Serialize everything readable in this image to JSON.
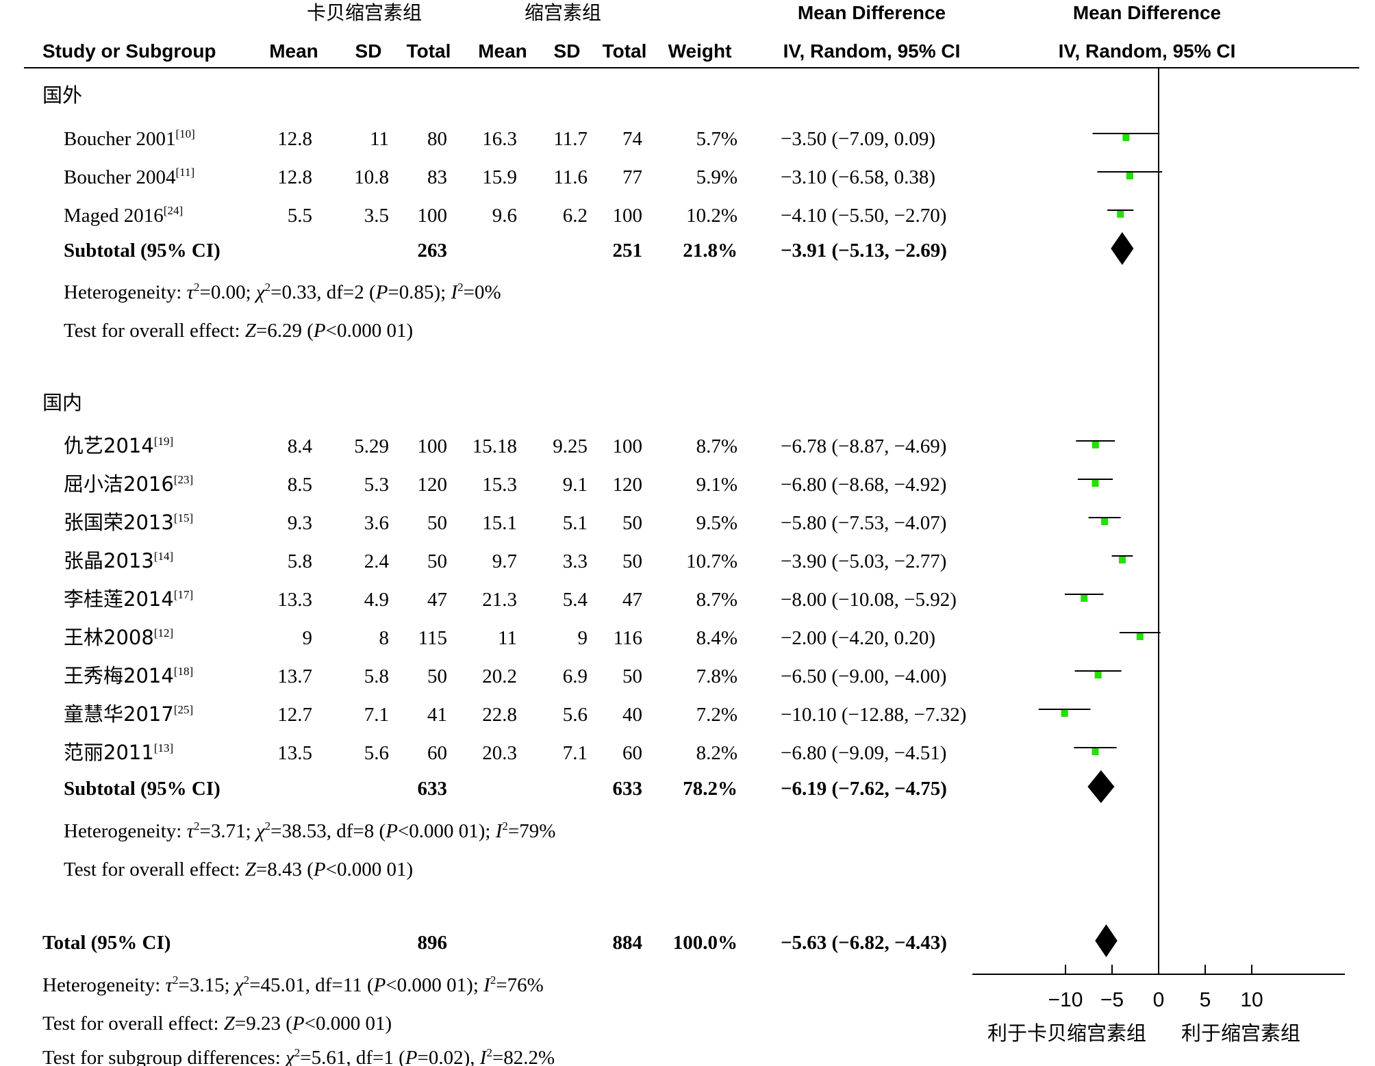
{
  "header": {
    "group1": "卡贝缩宫素组",
    "group2": "缩宫素组",
    "md_col": "Mean Difference",
    "md_col2": "Mean Difference",
    "study_col": "Study or Subgroup",
    "mean1": "Mean",
    "sd1": "SD",
    "total1": "Total",
    "mean2": "Mean",
    "sd2": "SD",
    "total2": "Total",
    "weight": "Weight",
    "ci_col": "IV, Random, 95% CI",
    "ci_col2": "IV, Random, 95% CI"
  },
  "chart_data": {
    "type": "forest",
    "x_axis": {
      "range": [
        -20,
        20
      ],
      "ticks": [
        -10,
        -5,
        0,
        5,
        10
      ],
      "tick_labels": [
        "−10",
        "−5",
        "0",
        "5",
        "10"
      ],
      "left_label": "利于卡贝缩宫素组",
      "right_label": "利于缩宫素组"
    },
    "colors": {
      "study_marker": "#22e000",
      "summary": "#000000"
    },
    "subgroups": [
      {
        "name": "国外",
        "studies": [
          {
            "name": "Boucher 2001",
            "ref": "[10]",
            "m1": "12.8",
            "sd1": "11",
            "n1": "80",
            "m2": "16.3",
            "sd2": "11.7",
            "n2": "74",
            "weight": "5.7%",
            "ci_text": "−3.50 (−7.09, 0.09)",
            "md": -3.5,
            "lo": -7.09,
            "hi": 0.09
          },
          {
            "name": "Boucher 2004",
            "ref": "[11]",
            "m1": "12.8",
            "sd1": "10.8",
            "n1": "83",
            "m2": "15.9",
            "sd2": "11.6",
            "n2": "77",
            "weight": "5.9%",
            "ci_text": "−3.10 (−6.58, 0.38)",
            "md": -3.1,
            "lo": -6.58,
            "hi": 0.38
          },
          {
            "name": "Maged 2016",
            "ref": "[24]",
            "m1": "5.5",
            "sd1": "3.5",
            "n1": "100",
            "m2": "9.6",
            "sd2": "6.2",
            "n2": "100",
            "weight": "10.2%",
            "ci_text": "−4.10 (−5.50, −2.70)",
            "md": -4.1,
            "lo": -5.5,
            "hi": -2.7
          }
        ],
        "subtotal": {
          "label": "Subtotal (95% CI)",
          "n1": "263",
          "n2": "251",
          "weight": "21.8%",
          "ci_text": "−3.91 (−5.13, −2.69)",
          "md": -3.91,
          "lo": -5.13,
          "hi": -2.69
        },
        "heterogeneity": {
          "prefix": "Heterogeneity: ",
          "tau": "τ",
          "tau_val": "=0.00; ",
          "chi": "χ",
          "chi_val": "=0.33, df=2 (",
          "p": "P",
          "p_val": "=0.85); ",
          "i": "I",
          "i_val": "=0%"
        },
        "overall": {
          "prefix": "Test for overall effect: ",
          "z": "Z",
          "z_val": "=6.29 (",
          "p": "P",
          "p_val": "<0.000 01)"
        }
      },
      {
        "name": "国内",
        "studies": [
          {
            "name": "仇艺2014",
            "ref": "[19]",
            "m1": "8.4",
            "sd1": "5.29",
            "n1": "100",
            "m2": "15.18",
            "sd2": "9.25",
            "n2": "100",
            "weight": "8.7%",
            "ci_text": "−6.78 (−8.87, −4.69)",
            "md": -6.78,
            "lo": -8.87,
            "hi": -4.69
          },
          {
            "name": "屈小洁2016",
            "ref": "[23]",
            "m1": "8.5",
            "sd1": "5.3",
            "n1": "120",
            "m2": "15.3",
            "sd2": "9.1",
            "n2": "120",
            "weight": "9.1%",
            "ci_text": "−6.80 (−8.68, −4.92)",
            "md": -6.8,
            "lo": -8.68,
            "hi": -4.92
          },
          {
            "name": "张国荣2013",
            "ref": "[15]",
            "m1": "9.3",
            "sd1": "3.6",
            "n1": "50",
            "m2": "15.1",
            "sd2": "5.1",
            "n2": "50",
            "weight": "9.5%",
            "ci_text": "−5.80 (−7.53, −4.07)",
            "md": -5.8,
            "lo": -7.53,
            "hi": -4.07
          },
          {
            "name": "张晶2013",
            "ref": "[14]",
            "m1": "5.8",
            "sd1": "2.4",
            "n1": "50",
            "m2": "9.7",
            "sd2": "3.3",
            "n2": "50",
            "weight": "10.7%",
            "ci_text": "−3.90 (−5.03, −2.77)",
            "md": -3.9,
            "lo": -5.03,
            "hi": -2.77
          },
          {
            "name": "李桂莲2014",
            "ref": "[17]",
            "m1": "13.3",
            "sd1": "4.9",
            "n1": "47",
            "m2": "21.3",
            "sd2": "5.4",
            "n2": "47",
            "weight": "8.7%",
            "ci_text": "−8.00 (−10.08, −5.92)",
            "md": -8.0,
            "lo": -10.08,
            "hi": -5.92
          },
          {
            "name": "王林2008",
            "ref": "[12]",
            "m1": "9",
            "sd1": "8",
            "n1": "115",
            "m2": "11",
            "sd2": "9",
            "n2": "116",
            "weight": "8.4%",
            "ci_text": "−2.00 (−4.20, 0.20)",
            "md": -2.0,
            "lo": -4.2,
            "hi": 0.2
          },
          {
            "name": "王秀梅2014",
            "ref": "[18]",
            "m1": "13.7",
            "sd1": "5.8",
            "n1": "50",
            "m2": "20.2",
            "sd2": "6.9",
            "n2": "50",
            "weight": "7.8%",
            "ci_text": "−6.50 (−9.00, −4.00)",
            "md": -6.5,
            "lo": -9.0,
            "hi": -4.0
          },
          {
            "name": "童慧华2017",
            "ref": "[25]",
            "m1": "12.7",
            "sd1": "7.1",
            "n1": "41",
            "m2": "22.8",
            "sd2": "5.6",
            "n2": "40",
            "weight": "7.2%",
            "ci_text": "−10.10 (−12.88, −7.32)",
            "md": -10.1,
            "lo": -12.88,
            "hi": -7.32
          },
          {
            "name": "范丽2011",
            "ref": "[13]",
            "m1": "13.5",
            "sd1": "5.6",
            "n1": "60",
            "m2": "20.3",
            "sd2": "7.1",
            "n2": "60",
            "weight": "8.2%",
            "ci_text": "−6.80 (−9.09, −4.51)",
            "md": -6.8,
            "lo": -9.09,
            "hi": -4.51
          }
        ],
        "subtotal": {
          "label": "Subtotal (95% CI)",
          "n1": "633",
          "n2": "633",
          "weight": "78.2%",
          "ci_text": "−6.19 (−7.62, −4.75)",
          "md": -6.19,
          "lo": -7.62,
          "hi": -4.75
        },
        "heterogeneity": {
          "prefix": "Heterogeneity: ",
          "tau": "τ",
          "tau_val": "=3.71; ",
          "chi": "χ",
          "chi_val": "=38.53, df=8 (",
          "p": "P",
          "p_val": "<0.000 01); ",
          "i": "I",
          "i_val": "=79%"
        },
        "overall": {
          "prefix": "Test for overall effect: ",
          "z": "Z",
          "z_val": "=8.43 (",
          "p": "P",
          "p_val": "<0.000 01)"
        }
      }
    ],
    "total": {
      "label": "Total (95% CI)",
      "n1": "896",
      "n2": "884",
      "weight": "100.0%",
      "ci_text": "−5.63 (−6.82, −4.43)",
      "md": -5.63,
      "lo": -6.82,
      "hi": -4.43
    },
    "total_heterogeneity": {
      "prefix": "Heterogeneity: ",
      "tau": "τ",
      "tau_val": "=3.15; ",
      "chi": "χ",
      "chi_val": "=45.01, df=11 (",
      "p": "P",
      "p_val": "<0.000 01); ",
      "i": "I",
      "i_val": "=76%"
    },
    "total_overall": {
      "prefix": "Test for overall effect: ",
      "z": "Z",
      "z_val": "=9.23 (",
      "p": "P",
      "p_val": "<0.000 01)"
    },
    "subgroup_diff": {
      "prefix": "Test for subgroup differences: ",
      "chi": "χ",
      "chi_val": "=5.61, df=1 (",
      "p": "P",
      "p_val": "=0.02), ",
      "i": "I",
      "i_val": "=82.2%"
    }
  }
}
